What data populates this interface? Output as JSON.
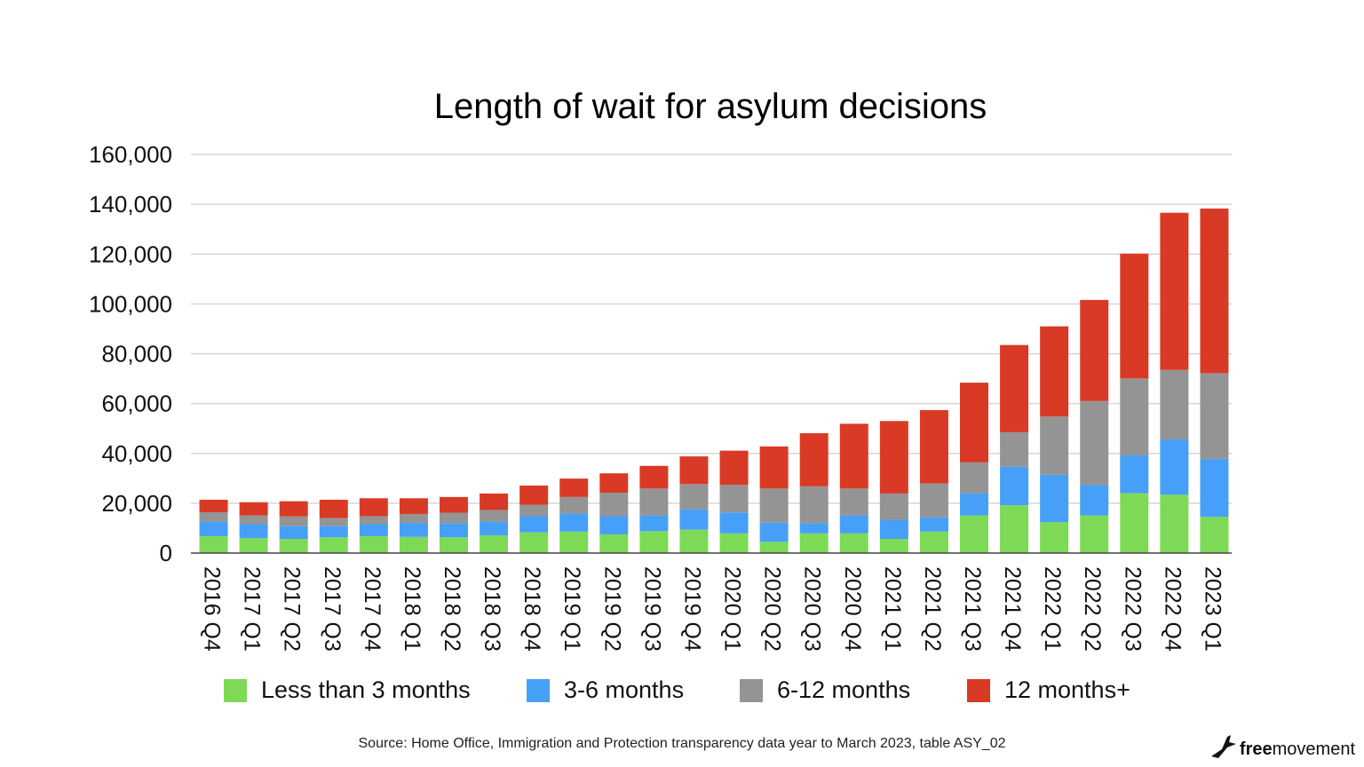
{
  "chart_data": {
    "type": "bar",
    "stacked": true,
    "title": "Length of wait for asylum decisions",
    "xlabel": "",
    "ylabel": "",
    "ylim": [
      0,
      160000
    ],
    "yticks": [
      0,
      20000,
      40000,
      60000,
      80000,
      100000,
      120000,
      140000,
      160000
    ],
    "ytick_labels": [
      "0",
      "20,000",
      "40,000",
      "60,000",
      "80,000",
      "100,000",
      "120,000",
      "140,000",
      "160,000"
    ],
    "grid": true,
    "legend_position": "bottom",
    "categories": [
      "2016 Q4",
      "2017 Q1",
      "2017 Q2",
      "2017 Q3",
      "2017 Q4",
      "2018 Q1",
      "2018 Q2",
      "2018 Q3",
      "2018 Q4",
      "2019 Q1",
      "2019 Q2",
      "2019 Q3",
      "2019 Q4",
      "2020 Q1",
      "2020 Q2",
      "2020 Q3",
      "2020 Q4",
      "2021 Q1",
      "2021 Q2",
      "2021 Q3",
      "2021 Q4",
      "2022 Q1",
      "2022 Q2",
      "2022 Q3",
      "2022 Q4",
      "2023 Q1"
    ],
    "series": [
      {
        "name": "Less than 3 months",
        "color": "#7ed957",
        "values": [
          6800,
          6000,
          5700,
          6300,
          6800,
          6500,
          6300,
          7100,
          8300,
          8600,
          7500,
          8800,
          9400,
          7900,
          4500,
          7900,
          7900,
          5700,
          8600,
          15100,
          19200,
          12400,
          15100,
          24000,
          23400,
          14500
        ]
      },
      {
        "name": "3-6 months",
        "color": "#46a0f7",
        "values": [
          5800,
          5600,
          5100,
          4500,
          4800,
          5600,
          5700,
          5500,
          6500,
          7300,
          7300,
          6300,
          8100,
          8400,
          7700,
          4100,
          7200,
          7700,
          5700,
          8900,
          15400,
          19000,
          12300,
          15200,
          22200,
          23300
        ]
      },
      {
        "name": "6-12 months",
        "color": "#949494",
        "values": [
          3800,
          3500,
          3900,
          3300,
          3200,
          3600,
          4200,
          4700,
          4600,
          6600,
          9400,
          10800,
          10200,
          11100,
          13700,
          14800,
          10800,
          10500,
          13600,
          12400,
          13900,
          23400,
          33600,
          30900,
          27900,
          34400
        ]
      },
      {
        "name": "12 months+",
        "color": "#d93a25",
        "values": [
          5000,
          5300,
          6100,
          7300,
          7200,
          6300,
          6300,
          6600,
          7700,
          7400,
          7800,
          9100,
          11100,
          13700,
          16900,
          21300,
          26000,
          29100,
          29500,
          32000,
          35000,
          36200,
          40600,
          50100,
          63100,
          66100
        ]
      }
    ]
  },
  "source": "Source: Home Office, Immigration and Protection transparency data year to March 2023, table ASY_02",
  "logo": {
    "bold": "free",
    "rest": "movement"
  }
}
